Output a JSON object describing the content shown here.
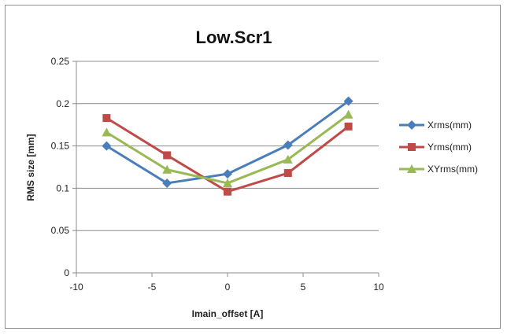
{
  "chart_data": {
    "type": "line",
    "title": "Low.Scr1",
    "xlabel": "Imain_offset [A]",
    "ylabel": "RMS size [mm]",
    "xlim": [
      -10,
      10
    ],
    "ylim": [
      0,
      0.25
    ],
    "xticks": [
      -10,
      -5,
      0,
      5,
      10
    ],
    "xtick_labels": [
      "-10",
      "-5",
      "0",
      "5",
      "10"
    ],
    "yticks": [
      0,
      0.05,
      0.1,
      0.15,
      0.2,
      0.25
    ],
    "ytick_labels": [
      "0",
      "0.05",
      "0.1",
      "0.15",
      "0.2",
      "0.25"
    ],
    "grid": {
      "horizontal": true,
      "vertical": false
    },
    "legend_position": "right",
    "x": [
      -8,
      -4,
      0,
      4,
      8
    ],
    "series": [
      {
        "name": "Xrms(mm)",
        "values": [
          0.15,
          0.106,
          0.117,
          0.151,
          0.203
        ],
        "color": "#4a7ebb",
        "marker": "diamond"
      },
      {
        "name": "Yrms(mm)",
        "values": [
          0.183,
          0.139,
          0.096,
          0.118,
          0.173
        ],
        "color": "#be4b48",
        "marker": "square"
      },
      {
        "name": "XYrms(mm)",
        "values": [
          0.166,
          0.122,
          0.106,
          0.134,
          0.187
        ],
        "color": "#98b954",
        "marker": "triangle"
      }
    ]
  }
}
